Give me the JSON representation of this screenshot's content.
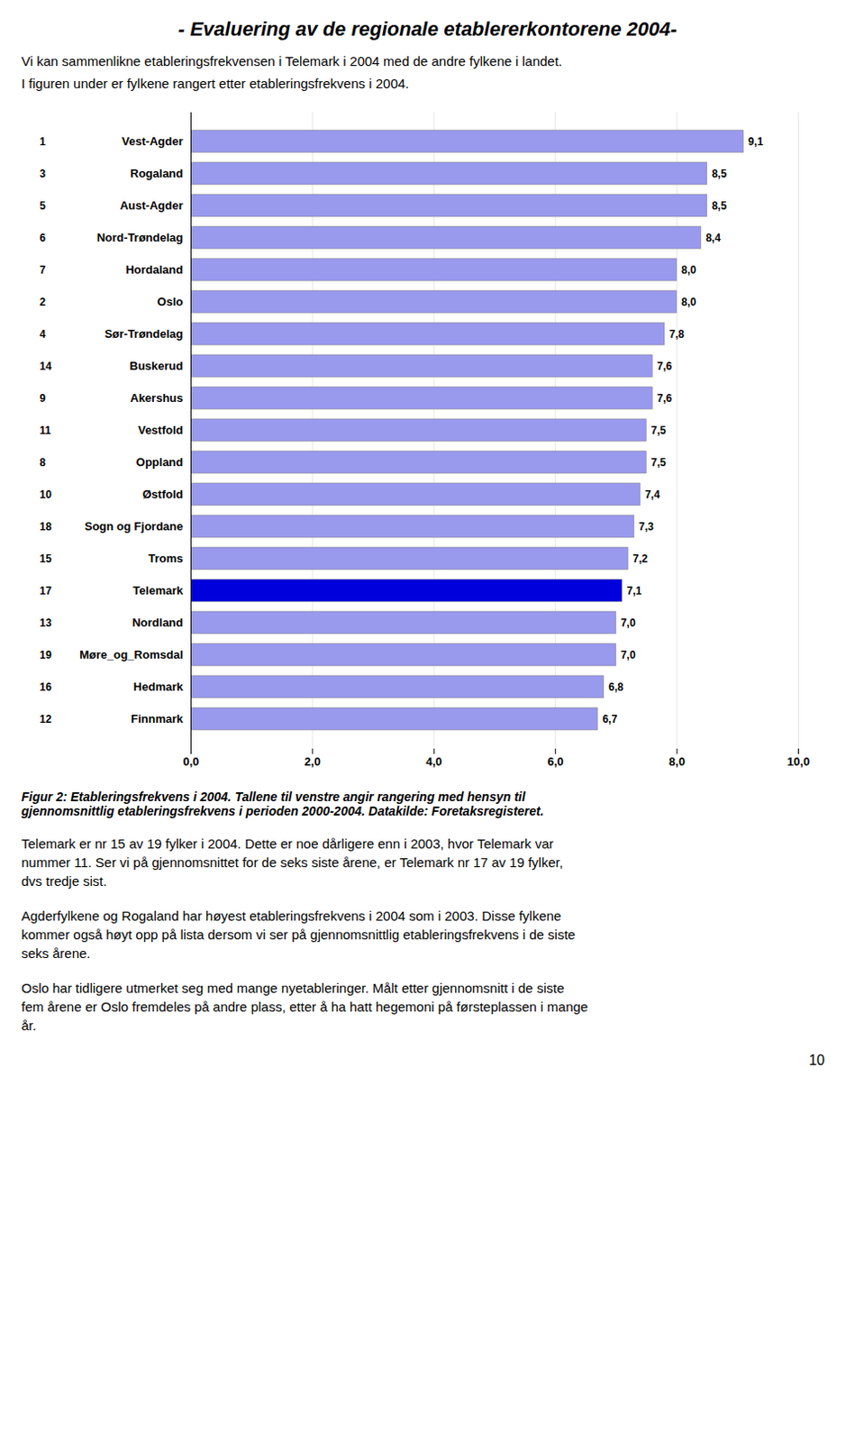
{
  "chart_data": {
    "type": "bar",
    "orientation": "horizontal",
    "title": "- Evaluering av de regionale etablererkontorene 2004-",
    "subtitle": [
      "Vi kan sammenlikne etableringsfrekvensen i Telemark i 2004 med de andre fylkene i landet.",
      "I figuren under er fylkene rangert etter etableringsfrekvens i 2004."
    ],
    "categories": [
      "Vest-Agder",
      "Rogaland",
      "Aust-Agder",
      "Nord-Trøndelag",
      "Hordaland",
      "Oslo",
      "Sør-Trøndelag",
      "Buskerud",
      "Akershus",
      "Vestfold",
      "Oppland",
      "Østfold",
      "Sogn og Fjordane",
      "Troms",
      "Telemark",
      "Nordland",
      "Møre_og_Romsdal",
      "Hedmark",
      "Finnmark"
    ],
    "ranks": [
      1,
      3,
      5,
      6,
      7,
      2,
      4,
      14,
      9,
      11,
      8,
      10,
      18,
      15,
      17,
      13,
      19,
      16,
      12
    ],
    "values": [
      9.1,
      8.5,
      8.5,
      8.4,
      8.0,
      8.0,
      7.8,
      7.6,
      7.6,
      7.5,
      7.5,
      7.4,
      7.3,
      7.2,
      7.1,
      7.0,
      7.0,
      6.8,
      6.7
    ],
    "value_labels": [
      "9,1",
      "8,5",
      "8,5",
      "8,4",
      "8,0",
      "8,0",
      "7,8",
      "7,6",
      "7,6",
      "7,5",
      "7,5",
      "7,4",
      "7,3",
      "7,2",
      "7,1",
      "7,0",
      "7,0",
      "6,8",
      "6,7"
    ],
    "colors": [
      "#9999ee",
      "#9999ee",
      "#9999ee",
      "#9999ee",
      "#9999ee",
      "#9999ee",
      "#9999ee",
      "#9999ee",
      "#9999ee",
      "#9999ee",
      "#9999ee",
      "#9999ee",
      "#9999ee",
      "#9999ee",
      "#0000dd",
      "#9999ee",
      "#9999ee",
      "#9999ee",
      "#9999ee"
    ],
    "xlim": [
      0,
      10.0
    ],
    "xticks": [
      {
        "value": 0,
        "label": "0,0"
      },
      {
        "value": 2,
        "label": "2,0"
      },
      {
        "value": 4,
        "label": "4,0"
      },
      {
        "value": 6,
        "label": "6,0"
      },
      {
        "value": 8,
        "label": "8,0"
      },
      {
        "value": 10,
        "label": "10,0"
      }
    ],
    "grid": true,
    "data_labels": true,
    "caption": "Figur 2: Etableringsfrekvens i 2004.   Tallene til venstre angir rangering med hensyn til\ngjennomsnittlig etableringsfrekvens i perioden 2000-2004.   Datakilde:  Foretaksregisteret.",
    "notes": [
      "Telemark er nr 15 av 19 fylker i 2004. Dette er noe dårligere enn i 2003, hvor Telemark var\nnummer 11.  Ser vi på gjennomsnittet for de seks siste årene, er Telemark nr 17 av 19 fylker,\ndvs tredje sist.",
      "Agderfylkene og Rogaland har høyest etableringsfrekvens i 2004 som i 2003.  Disse fylkene\nkommer også høyt opp på lista dersom vi ser på gjennomsnittlig etableringsfrekvens i de siste\nseks årene.",
      "Oslo har tidligere utmerket seg med mange nyetableringer.  Målt etter gjennomsnitt i de siste\nfem årene er Oslo fremdeles på andre plass, etter å ha hatt hegemoni på førsteplassen i mange\når."
    ],
    "page_number": "10"
  }
}
